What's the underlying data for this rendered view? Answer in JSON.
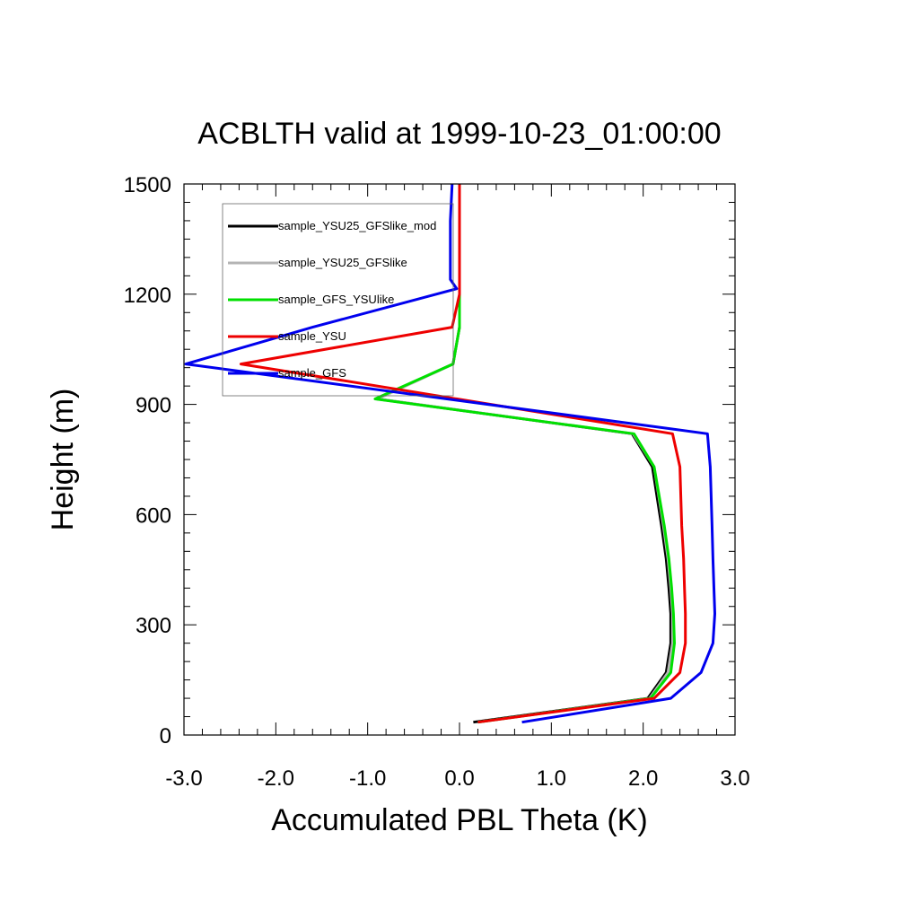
{
  "chart_data": {
    "type": "line",
    "title": "ACBLTH valid at 1999-10-23_01:00:00",
    "xlabel": "Accumulated PBL Theta (K)",
    "ylabel": "Height (m)",
    "xlim": [
      -3.0,
      3.0
    ],
    "ylim": [
      0,
      1500
    ],
    "xticks": [
      -3.0,
      -2.0,
      -1.0,
      0.0,
      1.0,
      2.0,
      3.0
    ],
    "xtick_labels": [
      "-3.0",
      "-2.0",
      "-1.0",
      "0.0",
      "1.0",
      "2.0",
      "3.0"
    ],
    "yticks": [
      0,
      300,
      600,
      900,
      1200,
      1500
    ],
    "ytick_labels": [
      "0",
      "300",
      "600",
      "900",
      "1200",
      "1500"
    ],
    "grid": false,
    "legend_position": "top-left",
    "series": [
      {
        "name": "sample_YSU25_GFSlike_mod",
        "color": "#000000",
        "points": [
          [
            0.15,
            35
          ],
          [
            2.05,
            100
          ],
          [
            2.25,
            170
          ],
          [
            2.3,
            250
          ],
          [
            2.3,
            330
          ],
          [
            2.28,
            400
          ],
          [
            2.25,
            480
          ],
          [
            2.2,
            570
          ],
          [
            2.1,
            730
          ],
          [
            1.88,
            820
          ],
          [
            -0.9,
            915
          ],
          [
            -0.07,
            1010
          ],
          [
            0.0,
            1110
          ],
          [
            0.0,
            1500
          ]
        ]
      },
      {
        "name": "sample_YSU25_GFSlike",
        "color": "#b4b4b4",
        "points": [
          [
            0.2,
            35
          ],
          [
            2.07,
            100
          ],
          [
            2.27,
            170
          ],
          [
            2.32,
            250
          ],
          [
            2.32,
            330
          ],
          [
            2.3,
            400
          ],
          [
            2.27,
            480
          ],
          [
            2.22,
            570
          ],
          [
            2.12,
            730
          ],
          [
            1.89,
            820
          ],
          [
            -0.89,
            915
          ],
          [
            -0.07,
            1010
          ],
          [
            0.0,
            1110
          ],
          [
            0.0,
            1500
          ]
        ]
      },
      {
        "name": "sample_GFS_YSUlike",
        "color": "#00e000",
        "points": [
          [
            0.2,
            35
          ],
          [
            2.08,
            100
          ],
          [
            2.3,
            170
          ],
          [
            2.34,
            250
          ],
          [
            2.33,
            330
          ],
          [
            2.31,
            400
          ],
          [
            2.28,
            480
          ],
          [
            2.23,
            570
          ],
          [
            2.12,
            730
          ],
          [
            1.9,
            820
          ],
          [
            -0.92,
            915
          ],
          [
            -0.07,
            1010
          ],
          [
            0.0,
            1110
          ],
          [
            0.0,
            1500
          ]
        ]
      },
      {
        "name": "sample_YSU",
        "color": "#ee0000",
        "points": [
          [
            0.2,
            35
          ],
          [
            2.12,
            100
          ],
          [
            2.4,
            170
          ],
          [
            2.46,
            250
          ],
          [
            2.46,
            330
          ],
          [
            2.45,
            400
          ],
          [
            2.44,
            480
          ],
          [
            2.42,
            570
          ],
          [
            2.4,
            730
          ],
          [
            2.32,
            820
          ],
          [
            -2.38,
            1010
          ],
          [
            -0.08,
            1110
          ],
          [
            0.0,
            1200
          ],
          [
            0.0,
            1500
          ]
        ]
      },
      {
        "name": "sample_GFS",
        "color": "#0000ee",
        "points": [
          [
            0.68,
            35
          ],
          [
            2.3,
            100
          ],
          [
            2.63,
            170
          ],
          [
            2.76,
            250
          ],
          [
            2.78,
            330
          ],
          [
            2.77,
            400
          ],
          [
            2.76,
            480
          ],
          [
            2.75,
            570
          ],
          [
            2.73,
            730
          ],
          [
            2.7,
            820
          ],
          [
            -2.98,
            1010
          ],
          [
            -1.6,
            1110
          ],
          [
            -0.03,
            1215
          ],
          [
            -0.1,
            1240
          ],
          [
            -0.1,
            1400
          ],
          [
            -0.08,
            1500
          ]
        ]
      }
    ]
  }
}
